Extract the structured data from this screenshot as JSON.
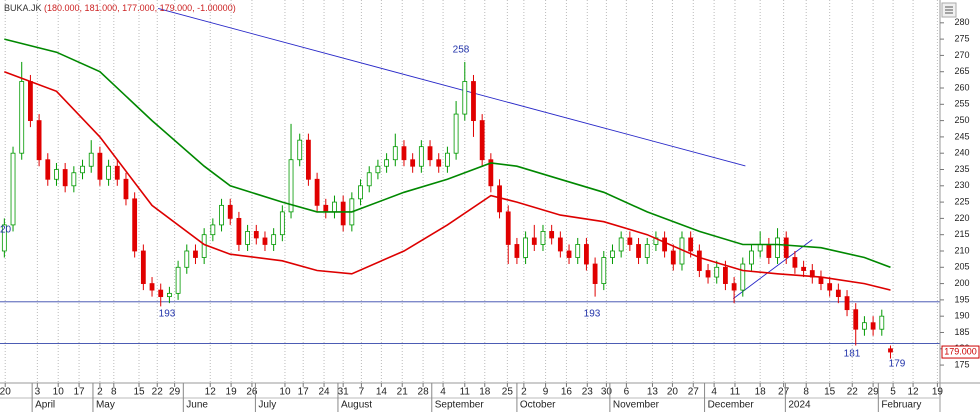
{
  "chart_data": {
    "type": "candlestick",
    "symbol": "BUKA.JK",
    "ohlc_text": "(180.000, 181.000, 177.000, 179.000, -1.00000)",
    "open": [
      210,
      218,
      240,
      262,
      250,
      238,
      232,
      235,
      230,
      234,
      236,
      240,
      232,
      236,
      232,
      226,
      210,
      200,
      198,
      196,
      197,
      205,
      210,
      208,
      215,
      218,
      224,
      220,
      212,
      216,
      214,
      212,
      215,
      222,
      238,
      244,
      232,
      224,
      222,
      225,
      218,
      226,
      230,
      234,
      236,
      238,
      242,
      238,
      236,
      242,
      238,
      236,
      240,
      252,
      262,
      250,
      238,
      230,
      222,
      212,
      208,
      214,
      212,
      216,
      214,
      210,
      208,
      212,
      206,
      200,
      208,
      210,
      214,
      212,
      208,
      212,
      214,
      210,
      206,
      214,
      210,
      204,
      202,
      205,
      200,
      198,
      206,
      210,
      212,
      208,
      214,
      208,
      205,
      204,
      202,
      200,
      198,
      196,
      192,
      186,
      188,
      186,
      180
    ],
    "high": [
      220,
      242,
      268,
      264,
      252,
      240,
      237,
      237,
      236,
      238,
      244,
      242,
      238,
      238,
      234,
      228,
      212,
      202,
      200,
      199,
      207,
      212,
      212,
      217,
      220,
      226,
      226,
      222,
      218,
      218,
      216,
      217,
      224,
      249,
      246,
      246,
      234,
      226,
      227,
      227,
      228,
      232,
      236,
      238,
      240,
      246,
      244,
      240,
      244,
      244,
      240,
      242,
      256,
      268,
      264,
      252,
      240,
      232,
      224,
      214,
      216,
      218,
      218,
      218,
      216,
      212,
      214,
      214,
      208,
      210,
      212,
      216,
      216,
      214,
      214,
      216,
      216,
      212,
      216,
      216,
      212,
      206,
      207,
      207,
      202,
      208,
      212,
      216,
      214,
      217,
      216,
      210,
      207,
      206,
      204,
      202,
      200,
      198,
      194,
      190,
      190,
      192,
      181
    ],
    "low": [
      208,
      216,
      238,
      248,
      236,
      230,
      230,
      228,
      228,
      232,
      234,
      230,
      230,
      230,
      224,
      208,
      198,
      196,
      193,
      194,
      195,
      203,
      206,
      206,
      213,
      216,
      218,
      210,
      210,
      212,
      210,
      210,
      213,
      220,
      236,
      230,
      222,
      220,
      220,
      216,
      216,
      224,
      228,
      232,
      234,
      236,
      236,
      234,
      234,
      236,
      234,
      234,
      238,
      250,
      245,
      236,
      228,
      220,
      206,
      206,
      206,
      210,
      210,
      212,
      208,
      206,
      206,
      204,
      196,
      198,
      206,
      208,
      210,
      206,
      206,
      210,
      208,
      204,
      204,
      208,
      202,
      200,
      200,
      198,
      194,
      196,
      204,
      208,
      206,
      206,
      206,
      203,
      202,
      200,
      198,
      196,
      194,
      190,
      181,
      184,
      184,
      184,
      177
    ],
    "close": [
      218,
      240,
      262,
      250,
      238,
      232,
      235,
      230,
      234,
      236,
      240,
      232,
      236,
      232,
      226,
      210,
      200,
      198,
      196,
      197,
      205,
      210,
      208,
      215,
      218,
      224,
      220,
      212,
      216,
      214,
      212,
      215,
      222,
      238,
      244,
      232,
      224,
      222,
      225,
      218,
      226,
      230,
      234,
      236,
      238,
      242,
      238,
      236,
      242,
      238,
      236,
      240,
      252,
      262,
      250,
      238,
      230,
      222,
      212,
      208,
      214,
      212,
      216,
      214,
      210,
      208,
      212,
      206,
      200,
      208,
      210,
      214,
      212,
      208,
      212,
      214,
      210,
      206,
      214,
      210,
      204,
      202,
      205,
      200,
      198,
      206,
      210,
      212,
      208,
      214,
      208,
      205,
      204,
      202,
      200,
      198,
      196,
      192,
      186,
      188,
      186,
      190,
      179
    ],
    "up_color": "#009900",
    "down_color": "#e00000",
    "moving_averages": [
      {
        "color": "#008800",
        "x": [
          0,
          6,
          11,
          17,
          23,
          26,
          32,
          36,
          40,
          46,
          51,
          56,
          59,
          64,
          69,
          74,
          80,
          85,
          89,
          94,
          99,
          102
        ],
        "values": [
          275,
          271,
          265,
          250,
          236,
          230,
          225,
          222,
          222,
          228,
          232,
          237,
          236,
          232,
          228,
          222,
          216,
          212,
          212,
          211,
          208,
          205
        ]
      },
      {
        "color": "#dd0000",
        "x": [
          0,
          6,
          11,
          17,
          23,
          26,
          32,
          36,
          40,
          46,
          51,
          56,
          59,
          64,
          69,
          74,
          80,
          85,
          89,
          94,
          99,
          102
        ],
        "values": [
          265,
          259,
          245,
          224,
          212,
          209,
          207,
          204,
          203,
          210,
          218,
          227,
          225,
          221,
          219,
          215,
          208,
          204,
          203,
          202,
          200,
          198
        ]
      }
    ],
    "trendlines": [
      {
        "color": "#2828c8",
        "x": [
          17.7,
          85.3
        ],
        "values": [
          284.4,
          236.1
        ]
      },
      {
        "color": "#2828c8",
        "x": [
          83.9,
          93
        ],
        "values": [
          195.4,
          213.5
        ]
      }
    ],
    "hlines": {
      "color": "#3344aa",
      "values": [
        194.4,
        181.6
      ]
    },
    "annotations": [
      "258",
      "193",
      "193",
      "181",
      "179",
      "20"
    ],
    "last_price": {
      "value": 179,
      "label": "179.000"
    },
    "xlim": [
      -0.5,
      107.7
    ],
    "ylim": [
      169.5,
      287
    ],
    "yticks": [
      175,
      180,
      185,
      190,
      195,
      200,
      205,
      210,
      215,
      220,
      225,
      230,
      235,
      240,
      245,
      250,
      255,
      260,
      265,
      270,
      275,
      280
    ],
    "xticks": [
      {
        "value": 0.1,
        "label": "20"
      },
      {
        "value": 3.8,
        "label": "3"
      },
      {
        "value": 6.2,
        "label": "10"
      },
      {
        "value": 8.6,
        "label": "17"
      },
      {
        "value": 11,
        "label": "2"
      },
      {
        "value": 12.6,
        "label": "8"
      },
      {
        "value": 15.5,
        "label": "15"
      },
      {
        "value": 17.6,
        "label": "22"
      },
      {
        "value": 19.6,
        "label": "29"
      },
      {
        "value": 23.7,
        "label": "12"
      },
      {
        "value": 26.1,
        "label": "19"
      },
      {
        "value": 28.5,
        "label": "26"
      },
      {
        "value": 32.3,
        "label": "10"
      },
      {
        "value": 34.4,
        "label": "17"
      },
      {
        "value": 36.8,
        "label": "24"
      },
      {
        "value": 39,
        "label": "31"
      },
      {
        "value": 41.1,
        "label": "7"
      },
      {
        "value": 43.4,
        "label": "14"
      },
      {
        "value": 45.8,
        "label": "21"
      },
      {
        "value": 48.2,
        "label": "28"
      },
      {
        "value": 50.5,
        "label": "4"
      },
      {
        "value": 53,
        "label": "11"
      },
      {
        "value": 55.3,
        "label": "18"
      },
      {
        "value": 57.9,
        "label": "25"
      },
      {
        "value": 59.8,
        "label": "2"
      },
      {
        "value": 62.3,
        "label": "9"
      },
      {
        "value": 64.7,
        "label": "16"
      },
      {
        "value": 67.1,
        "label": "23"
      },
      {
        "value": 69.3,
        "label": "30"
      },
      {
        "value": 71.6,
        "label": "6"
      },
      {
        "value": 74.6,
        "label": "13"
      },
      {
        "value": 76.9,
        "label": "20"
      },
      {
        "value": 79.3,
        "label": "27"
      },
      {
        "value": 81.7,
        "label": "4"
      },
      {
        "value": 84.1,
        "label": "11"
      },
      {
        "value": 87,
        "label": "18"
      },
      {
        "value": 89.7,
        "label": "27"
      },
      {
        "value": 92.3,
        "label": "8"
      },
      {
        "value": 95,
        "label": "15"
      },
      {
        "value": 97.6,
        "label": "22"
      },
      {
        "value": 100,
        "label": "29"
      },
      {
        "value": 102.3,
        "label": "5"
      },
      {
        "value": 104.6,
        "label": "12"
      },
      {
        "value": 107.4,
        "label": "19"
      }
    ],
    "months": [
      {
        "value": 3.2,
        "label": "April"
      },
      {
        "value": 10.2,
        "label": "May"
      },
      {
        "value": 20.6,
        "label": "June"
      },
      {
        "value": 28.9,
        "label": "July"
      },
      {
        "value": 38.4,
        "label": "August"
      },
      {
        "value": 49.2,
        "label": "September"
      },
      {
        "value": 59,
        "label": "October"
      },
      {
        "value": 69.7,
        "label": "November"
      },
      {
        "value": 80.6,
        "label": "December"
      },
      {
        "value": 89.9,
        "label": "2024"
      },
      {
        "value": 100.6,
        "label": "February"
      }
    ],
    "grid": true
  }
}
